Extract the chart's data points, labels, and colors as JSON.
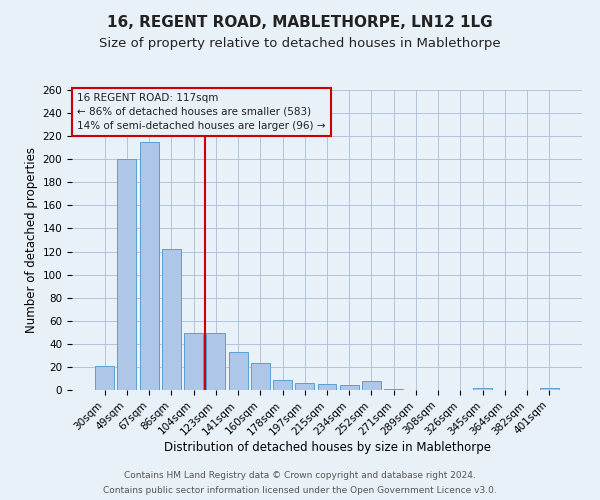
{
  "title1": "16, REGENT ROAD, MABLETHORPE, LN12 1LG",
  "title2": "Size of property relative to detached houses in Mablethorpe",
  "xlabel": "Distribution of detached houses by size in Mablethorpe",
  "ylabel": "Number of detached properties",
  "categories": [
    "30sqm",
    "49sqm",
    "67sqm",
    "86sqm",
    "104sqm",
    "123sqm",
    "141sqm",
    "160sqm",
    "178sqm",
    "197sqm",
    "215sqm",
    "234sqm",
    "252sqm",
    "271sqm",
    "289sqm",
    "308sqm",
    "326sqm",
    "345sqm",
    "364sqm",
    "382sqm",
    "401sqm"
  ],
  "values": [
    21,
    200,
    215,
    122,
    49,
    49,
    33,
    23,
    9,
    6,
    5,
    4,
    8,
    1,
    0,
    0,
    0,
    2,
    0,
    0,
    2
  ],
  "bar_color": "#aec6e8",
  "bar_edge_color": "#5a9fd4",
  "vline_x": 4.5,
  "vline_color": "#cc0000",
  "annotation_line1": "16 REGENT ROAD: 117sqm",
  "annotation_line2": "← 86% of detached houses are smaller (583)",
  "annotation_line3": "14% of semi-detached houses are larger (96) →",
  "annotation_box_color": "#cc0000",
  "ylim": [
    0,
    260
  ],
  "yticks": [
    0,
    20,
    40,
    60,
    80,
    100,
    120,
    140,
    160,
    180,
    200,
    220,
    240,
    260
  ],
  "grid_color": "#b0c4de",
  "bg_color": "#e8f0f8",
  "footer1": "Contains HM Land Registry data © Crown copyright and database right 2024.",
  "footer2": "Contains public sector information licensed under the Open Government Licence v3.0.",
  "title1_fontsize": 11,
  "title2_fontsize": 9.5,
  "xlabel_fontsize": 8.5,
  "ylabel_fontsize": 8.5,
  "tick_fontsize": 7.5,
  "annotation_fontsize": 7.5,
  "footer_fontsize": 6.5
}
